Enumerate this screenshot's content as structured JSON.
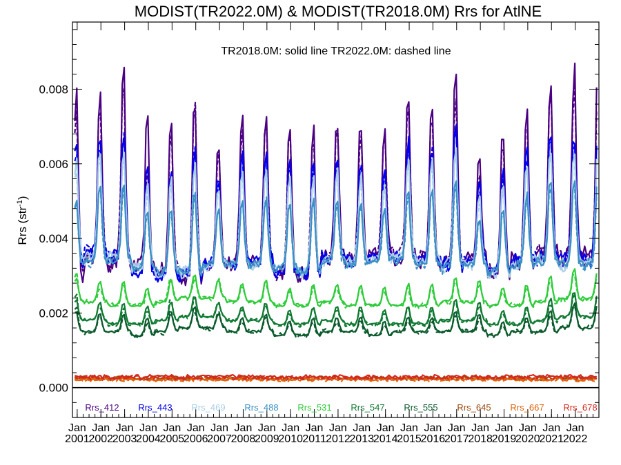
{
  "chart_data": {
    "type": "line",
    "title": "MODIST(TR2022.0M) & MODIST(TR2018.0M)  Rrs for AtlNE",
    "annotation": "TR2018.0M: solid line   TR2022.0M: dashed line",
    "ylabel_main": "Rrs (str",
    "ylabel_sup": "-1",
    "ylabel_tail": ")",
    "ylim": [
      -0.0008,
      0.0098
    ],
    "xlim": [
      2000.8,
      2023.0
    ],
    "yticks": [
      0.0,
      0.002,
      0.004,
      0.006,
      0.008
    ],
    "ytick_labels": [
      "0.000",
      "0.002",
      "0.004",
      "0.006",
      "0.008"
    ],
    "xticks": [
      {
        "year": 2001,
        "label_top": "Jan",
        "label_bottom": "2001"
      },
      {
        "year": 2002,
        "label_top": "Jan",
        "label_bottom": "2002"
      },
      {
        "year": 2003,
        "label_top": "Jan",
        "label_bottom": "2003"
      },
      {
        "year": 2004,
        "label_top": "Jan",
        "label_bottom": "2004"
      },
      {
        "year": 2005,
        "label_top": "Jan",
        "label_bottom": "2005"
      },
      {
        "year": 2006,
        "label_top": "Jan",
        "label_bottom": "2006"
      },
      {
        "year": 2007,
        "label_top": "Jan",
        "label_bottom": "2007"
      },
      {
        "year": 2008,
        "label_top": "Jan",
        "label_bottom": "2008"
      },
      {
        "year": 2009,
        "label_top": "Jan",
        "label_bottom": "2009"
      },
      {
        "year": 2010,
        "label_top": "Jan",
        "label_bottom": "2010"
      },
      {
        "year": 2011,
        "label_top": "Jan",
        "label_bottom": "2011"
      },
      {
        "year": 2012,
        "label_top": "Jan",
        "label_bottom": "2012"
      },
      {
        "year": 2013,
        "label_top": "Jan",
        "label_bottom": "2013"
      },
      {
        "year": 2014,
        "label_top": "Jan",
        "label_bottom": "2014"
      },
      {
        "year": 2015,
        "label_top": "Jan",
        "label_bottom": "2015"
      },
      {
        "year": 2016,
        "label_top": "Jan",
        "label_bottom": "2016"
      },
      {
        "year": 2017,
        "label_top": "Jan",
        "label_bottom": "2017"
      },
      {
        "year": 2018,
        "label_top": "Jan",
        "label_bottom": "2018"
      },
      {
        "year": 2019,
        "label_top": "Jan",
        "label_bottom": "2019"
      },
      {
        "year": 2020,
        "label_top": "Jan",
        "label_bottom": "2020"
      },
      {
        "year": 2021,
        "label_top": "Jan",
        "label_bottom": "2021"
      },
      {
        "year": 2022,
        "label_top": "Jan",
        "label_bottom": "2022"
      }
    ],
    "zero_line": 0.0,
    "series": [
      {
        "name": "Rrs_412",
        "color": "#4b0082",
        "peaks": [
          0.0082,
          0.0081,
          0.0087,
          0.0074,
          0.0074,
          0.0079,
          0.0068,
          0.0075,
          0.0076,
          0.0071,
          0.0072,
          0.0073,
          0.0073,
          0.0071,
          0.0081,
          0.0077,
          0.0086,
          0.0063,
          0.0071,
          0.0076,
          0.0085,
          0.0088
        ],
        "troughs": [
          0.0031,
          0.0035,
          0.0034,
          0.0032,
          0.0031,
          0.003,
          0.0033,
          0.0033,
          0.0034,
          0.0031,
          0.003,
          0.0035,
          0.0034,
          0.0036,
          0.0035,
          0.0034,
          0.0033,
          0.0035,
          0.0031,
          0.0034,
          0.0036,
          0.0035
        ],
        "dash_peaks": [
          0.0079,
          0.0079,
          0.0084,
          0.006,
          0.0071,
          0.008,
          0.0067,
          0.0072,
          0.0075,
          0.0069,
          0.007,
          0.0071,
          0.0069,
          0.0069,
          0.0079,
          0.0076,
          0.0081,
          0.0059,
          0.0068,
          0.0074,
          0.0081,
          0.0082
        ]
      },
      {
        "name": "Rrs_443",
        "color": "#0000ee",
        "peaks": [
          0.0069,
          0.0069,
          0.007,
          0.0061,
          0.006,
          0.0066,
          0.0058,
          0.0065,
          0.0065,
          0.0062,
          0.0063,
          0.0063,
          0.0062,
          0.006,
          0.0068,
          0.0066,
          0.0074,
          0.0056,
          0.006,
          0.0065,
          0.007,
          0.007
        ],
        "troughs": [
          0.0033,
          0.0036,
          0.0035,
          0.0031,
          0.003,
          0.003,
          0.0033,
          0.0033,
          0.0034,
          0.0031,
          0.003,
          0.0035,
          0.0034,
          0.0035,
          0.0035,
          0.0034,
          0.0033,
          0.0034,
          0.0031,
          0.0034,
          0.0035,
          0.0034
        ],
        "dash_peaks": [
          0.0067,
          0.0067,
          0.0069,
          0.0056,
          0.0058,
          0.0066,
          0.0057,
          0.0063,
          0.0064,
          0.0061,
          0.0062,
          0.0062,
          0.0061,
          0.0059,
          0.0067,
          0.0065,
          0.0072,
          0.0054,
          0.0058,
          0.0064,
          0.0069,
          0.0068
        ]
      },
      {
        "name": "Rrs_469",
        "color": "#a9cfe8",
        "peaks": [
          0.0063,
          0.0065,
          0.0064,
          0.0057,
          0.0057,
          0.0062,
          0.0055,
          0.006,
          0.006,
          0.0058,
          0.0059,
          0.006,
          0.0058,
          0.0056,
          0.0063,
          0.0062,
          0.0068,
          0.0052,
          0.0056,
          0.0061,
          0.0066,
          0.0066
        ],
        "troughs": [
          0.0034,
          0.0035,
          0.0035,
          0.0032,
          0.0031,
          0.0031,
          0.0033,
          0.0033,
          0.0033,
          0.0032,
          0.0031,
          0.0034,
          0.0034,
          0.0034,
          0.0035,
          0.0034,
          0.0033,
          0.0033,
          0.003,
          0.0033,
          0.0034,
          0.0033
        ],
        "dash_peaks": [
          0.0061,
          0.0063,
          0.0062,
          0.0054,
          0.0055,
          0.0061,
          0.0054,
          0.0059,
          0.0059,
          0.0057,
          0.0058,
          0.0059,
          0.0057,
          0.0055,
          0.0062,
          0.0061,
          0.0066,
          0.005,
          0.0055,
          0.006,
          0.0064,
          0.0064
        ]
      },
      {
        "name": "Rrs_488",
        "color": "#3b8fc4",
        "peaks": [
          0.0052,
          0.0056,
          0.0055,
          0.0049,
          0.0049,
          0.0054,
          0.0049,
          0.0052,
          0.0052,
          0.0051,
          0.0052,
          0.0052,
          0.0051,
          0.0049,
          0.0054,
          0.0054,
          0.0057,
          0.0046,
          0.0049,
          0.0053,
          0.0057,
          0.0057
        ],
        "troughs": [
          0.0033,
          0.0034,
          0.0034,
          0.0032,
          0.0031,
          0.0031,
          0.0033,
          0.0033,
          0.0033,
          0.0032,
          0.0031,
          0.0034,
          0.0033,
          0.0034,
          0.0034,
          0.0033,
          0.0032,
          0.0033,
          0.0031,
          0.0033,
          0.0034,
          0.0033
        ],
        "dash_peaks": [
          0.0051,
          0.0055,
          0.0054,
          0.0047,
          0.0048,
          0.0053,
          0.0048,
          0.0051,
          0.0051,
          0.005,
          0.0051,
          0.0051,
          0.005,
          0.0048,
          0.0053,
          0.0053,
          0.0056,
          0.0045,
          0.0048,
          0.0052,
          0.0056,
          0.0056
        ]
      },
      {
        "name": "Rrs_531",
        "color": "#2ecc3a",
        "peaks": [
          0.003,
          0.0029,
          0.0029,
          0.0027,
          0.0029,
          0.0031,
          0.0029,
          0.0028,
          0.0029,
          0.0027,
          0.0028,
          0.0028,
          0.0028,
          0.0027,
          0.0028,
          0.0028,
          0.003,
          0.0029,
          0.0027,
          0.0028,
          0.003,
          0.0032
        ],
        "troughs": [
          0.0023,
          0.0023,
          0.0022,
          0.0022,
          0.0023,
          0.0024,
          0.0024,
          0.0023,
          0.0023,
          0.0022,
          0.0022,
          0.0023,
          0.0022,
          0.0022,
          0.0022,
          0.0022,
          0.0023,
          0.0023,
          0.0022,
          0.0022,
          0.0023,
          0.0024
        ],
        "dash_peaks": [
          0.0031,
          0.0027,
          0.0028,
          0.0026,
          0.003,
          0.003,
          0.0029,
          0.0027,
          0.0028,
          0.0026,
          0.0027,
          0.0027,
          0.0027,
          0.0026,
          0.0027,
          0.0027,
          0.0029,
          0.0028,
          0.0026,
          0.0027,
          0.0029,
          0.0031
        ]
      },
      {
        "name": "Rrs_547",
        "color": "#0f7a32",
        "peaks": [
          0.0024,
          0.0023,
          0.0023,
          0.0022,
          0.0023,
          0.0025,
          0.0023,
          0.0022,
          0.0023,
          0.0021,
          0.0022,
          0.0022,
          0.0022,
          0.0021,
          0.0022,
          0.0022,
          0.0024,
          0.0023,
          0.0021,
          0.0022,
          0.0024,
          0.0026
        ],
        "troughs": [
          0.0018,
          0.0018,
          0.0017,
          0.0017,
          0.0018,
          0.0019,
          0.0019,
          0.0018,
          0.0018,
          0.0017,
          0.0017,
          0.0018,
          0.0017,
          0.0017,
          0.0017,
          0.0017,
          0.0018,
          0.0018,
          0.0017,
          0.0017,
          0.0018,
          0.0019
        ],
        "dash_peaks": [
          0.0025,
          0.0022,
          0.0022,
          0.0021,
          0.0024,
          0.0024,
          0.0023,
          0.0021,
          0.0022,
          0.002,
          0.0021,
          0.0021,
          0.0021,
          0.002,
          0.0021,
          0.0021,
          0.0023,
          0.0022,
          0.002,
          0.0021,
          0.0023,
          0.0025
        ]
      },
      {
        "name": "Rrs_555",
        "color": "#0a5a2c",
        "peaks": [
          0.0021,
          0.002,
          0.002,
          0.0019,
          0.002,
          0.0022,
          0.002,
          0.0019,
          0.002,
          0.0018,
          0.0019,
          0.0019,
          0.0019,
          0.0018,
          0.0019,
          0.0019,
          0.0021,
          0.002,
          0.0018,
          0.0019,
          0.0021,
          0.0023
        ],
        "troughs": [
          0.0015,
          0.0015,
          0.0015,
          0.0014,
          0.0015,
          0.0016,
          0.0016,
          0.0015,
          0.0015,
          0.0014,
          0.0014,
          0.0015,
          0.0015,
          0.0014,
          0.0015,
          0.0015,
          0.0015,
          0.0015,
          0.0014,
          0.0015,
          0.0015,
          0.0016
        ],
        "dash_peaks": [
          0.0022,
          0.0019,
          0.0019,
          0.0018,
          0.0021,
          0.0021,
          0.002,
          0.0018,
          0.0019,
          0.0017,
          0.0018,
          0.0018,
          0.0018,
          0.0017,
          0.0018,
          0.0018,
          0.002,
          0.0019,
          0.0017,
          0.0018,
          0.002,
          0.0022
        ]
      },
      {
        "name": "Rrs_645",
        "color": "#9c4a10",
        "base": 0.00026,
        "amp": 6e-05
      },
      {
        "name": "Rrs_667",
        "color": "#e0620a",
        "base": 0.00023,
        "amp": 6e-05
      },
      {
        "name": "Rrs_678",
        "color": "#d42a1e",
        "base": 0.00029,
        "amp": 7e-05
      }
    ]
  }
}
